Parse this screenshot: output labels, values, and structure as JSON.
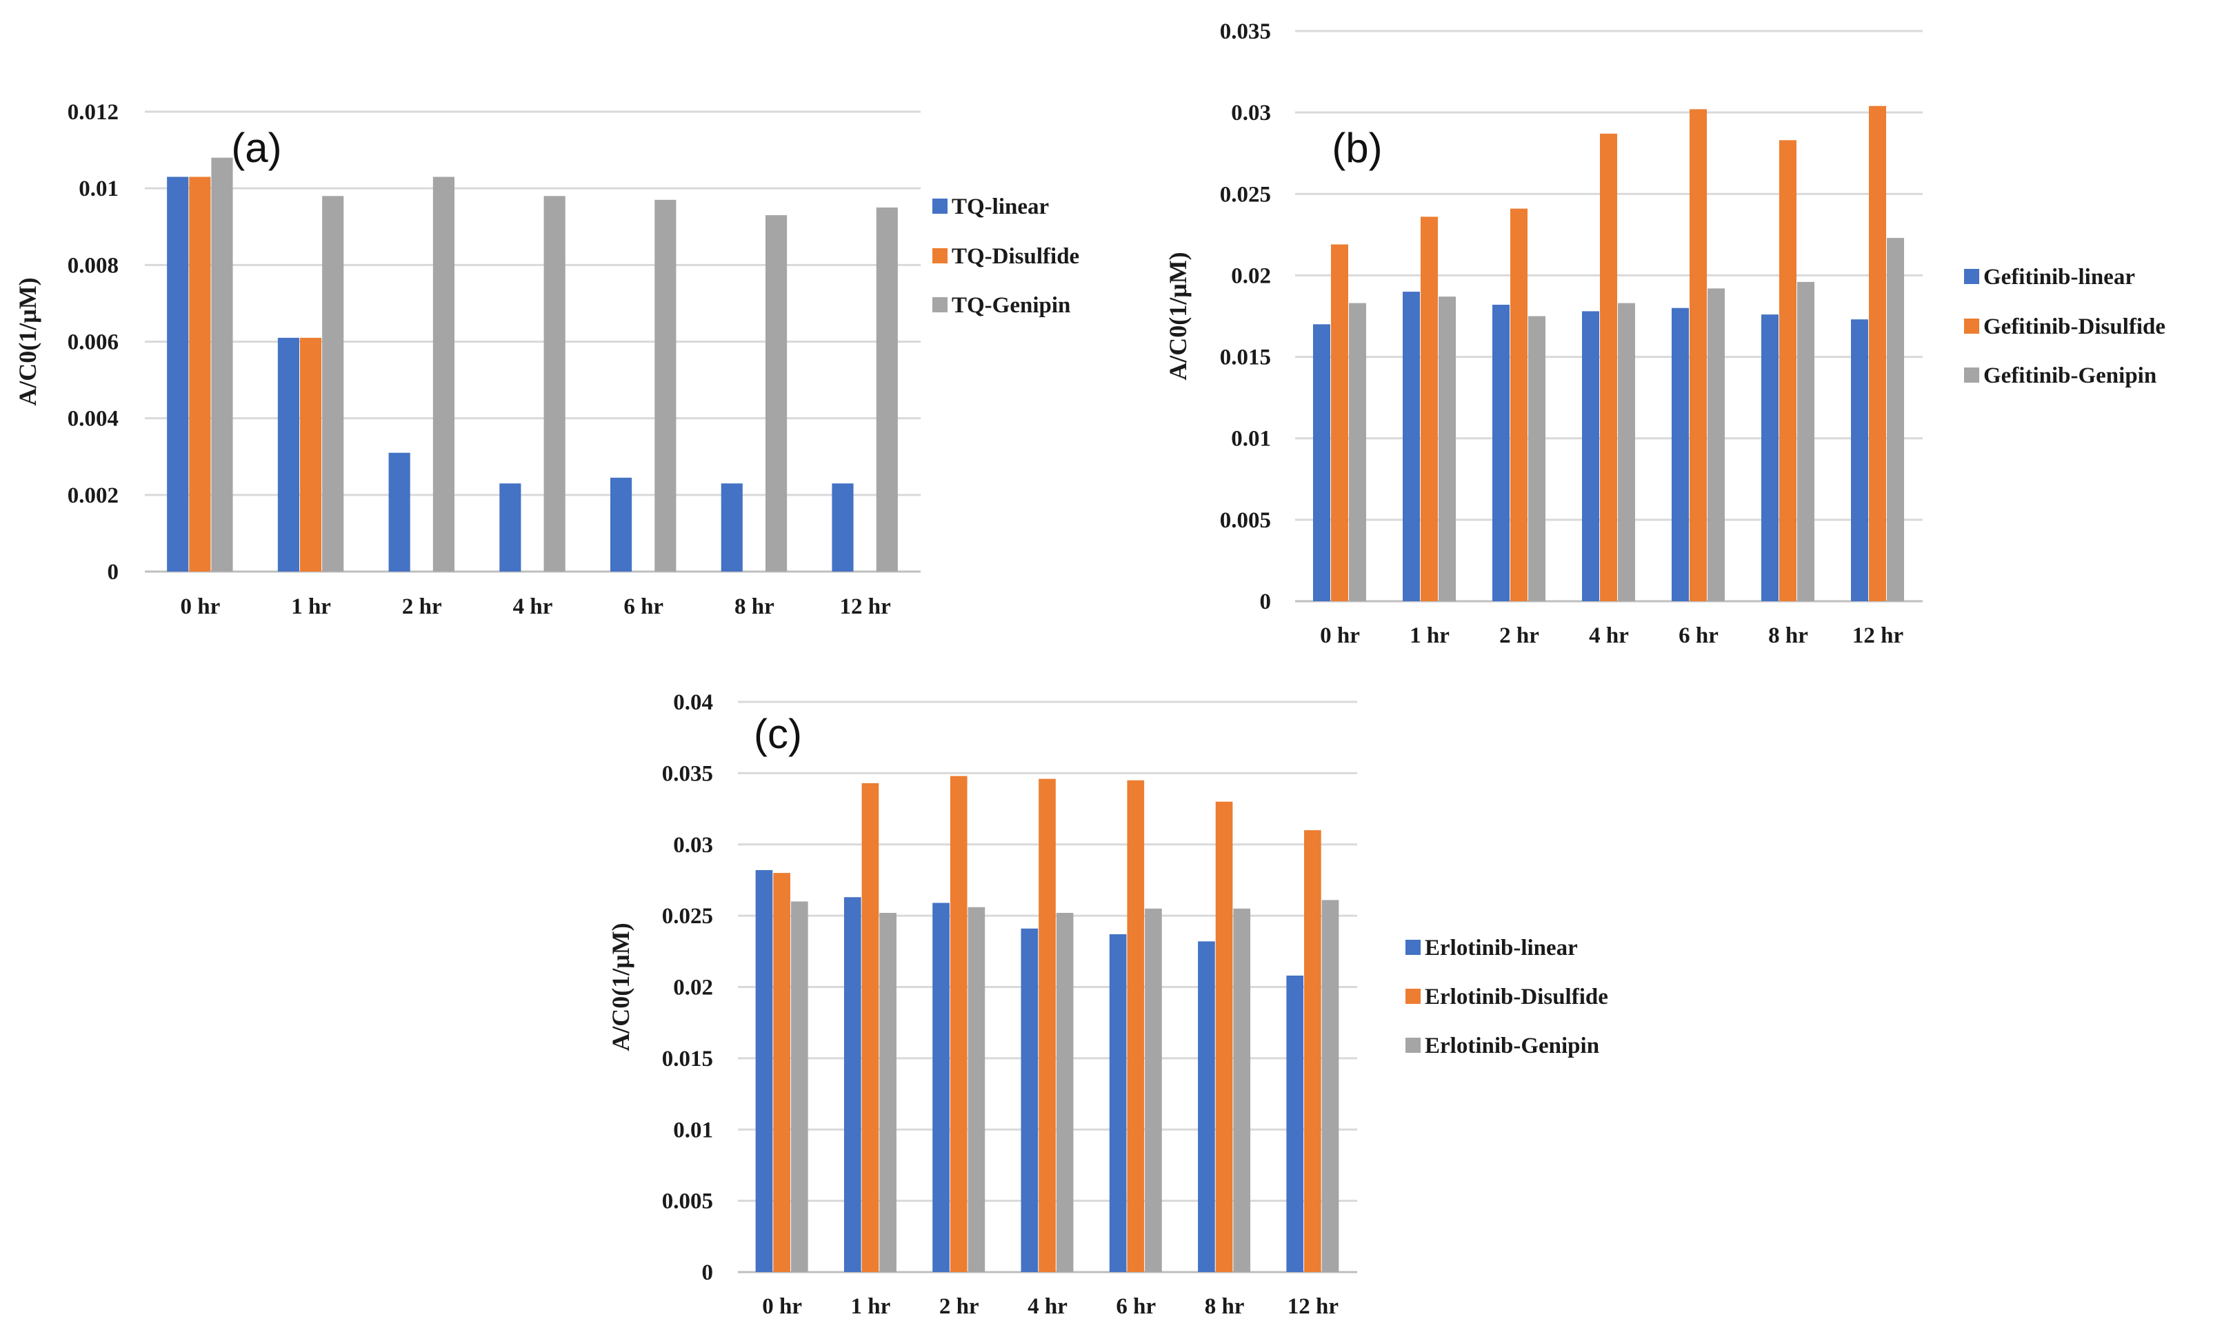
{
  "colors": {
    "linear": "#4472C4",
    "disulfide": "#ED7D31",
    "genipin": "#A5A5A5"
  },
  "chart_data": [
    {
      "type": "bar",
      "panel_label": "(a)",
      "categories": [
        "0 hr",
        "1 hr",
        "2 hr",
        "4 hr",
        "6 hr",
        "8 hr",
        "12 hr"
      ],
      "ylabel": "A/C0(1/μM)",
      "ylim": [
        0,
        0.012
      ],
      "yticks": [
        "0",
        "0.002",
        "0.004",
        "0.006",
        "0.008",
        "0.01",
        "0.012"
      ],
      "grid": true,
      "legend_position": "right",
      "series": [
        {
          "name": "TQ-linear",
          "values": [
            0.0103,
            0.0061,
            0.0031,
            0.0023,
            0.00245,
            0.0023,
            0.0023
          ]
        },
        {
          "name": "TQ-Disulfide",
          "values": [
            0.0103,
            0.0061,
            0,
            0,
            0,
            0,
            0
          ]
        },
        {
          "name": "TQ-Genipin",
          "values": [
            0.0108,
            0.0098,
            0.0103,
            0.0098,
            0.0097,
            0.0093,
            0.0095
          ]
        }
      ]
    },
    {
      "type": "bar",
      "panel_label": "(b)",
      "categories": [
        "0 hr",
        "1 hr",
        "2 hr",
        "4 hr",
        "6 hr",
        "8 hr",
        "12 hr"
      ],
      "ylabel": "A/C0(1/μM)",
      "ylim": [
        0,
        0.035
      ],
      "yticks": [
        "0",
        "0.005",
        "0.01",
        "0.015",
        "0.02",
        "0.025",
        "0.03",
        "0.035"
      ],
      "grid": true,
      "legend_position": "right",
      "series": [
        {
          "name": "Gefitinib-linear",
          "values": [
            0.017,
            0.019,
            0.0182,
            0.0178,
            0.018,
            0.0176,
            0.0173
          ]
        },
        {
          "name": "Gefitinib-Disulfide",
          "values": [
            0.0219,
            0.0236,
            0.0241,
            0.0287,
            0.0302,
            0.0283,
            0.0304
          ]
        },
        {
          "name": "Gefitinib-Genipin",
          "values": [
            0.0183,
            0.0187,
            0.0175,
            0.0183,
            0.0192,
            0.0196,
            0.0223
          ]
        }
      ]
    },
    {
      "type": "bar",
      "panel_label": "(c)",
      "categories": [
        "0 hr",
        "1 hr",
        "2 hr",
        "4 hr",
        "6 hr",
        "8 hr",
        "12 hr"
      ],
      "ylabel": "A/C0(1/μM)",
      "ylim": [
        0,
        0.04
      ],
      "yticks": [
        "0",
        "0.005",
        "0.01",
        "0.015",
        "0.02",
        "0.025",
        "0.03",
        "0.035",
        "0.04"
      ],
      "grid": true,
      "legend_position": "right",
      "series": [
        {
          "name": "Erlotinib-linear",
          "values": [
            0.0282,
            0.0263,
            0.0259,
            0.0241,
            0.0237,
            0.0232,
            0.0208
          ]
        },
        {
          "name": "Erlotinib-Disulfide",
          "values": [
            0.028,
            0.0343,
            0.0348,
            0.0346,
            0.0345,
            0.033,
            0.031
          ]
        },
        {
          "name": "Erlotinib-Genipin",
          "values": [
            0.026,
            0.0252,
            0.0256,
            0.0252,
            0.0255,
            0.0255,
            0.0261
          ]
        }
      ]
    }
  ]
}
